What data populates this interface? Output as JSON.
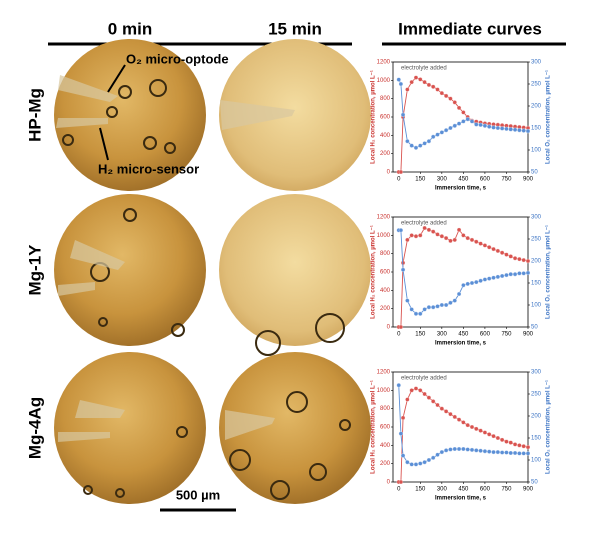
{
  "columns": [
    "0 min",
    "15 min",
    "Immediate curves"
  ],
  "rows": [
    "HP-Mg",
    "Mg-1Y",
    "Mg-4Ag"
  ],
  "photo_labels": [
    "O₂ micro-optode",
    "H₂ micro-sensor"
  ],
  "scale_bar": "500 µm",
  "chart_data": [
    {
      "type": "line",
      "annotation": "electrolyte added",
      "xlabel": "Immersion time, s",
      "ylabel": "Local H₂ concentration, µmol L⁻¹",
      "y2label": "Local O₂ concentration, µmol L⁻¹",
      "xlim": [
        -40,
        900
      ],
      "xticks": [
        0,
        150,
        300,
        450,
        600,
        750,
        900
      ],
      "ylim": [
        0,
        1200
      ],
      "yticks": [
        0,
        200,
        400,
        600,
        800,
        1000,
        1200
      ],
      "y2lim": [
        50,
        300
      ],
      "y2ticks": [
        50,
        100,
        150,
        200,
        250,
        300
      ],
      "x": [
        0,
        15,
        30,
        60,
        90,
        120,
        150,
        180,
        210,
        240,
        270,
        300,
        330,
        360,
        390,
        420,
        450,
        480,
        510,
        540,
        570,
        600,
        630,
        660,
        690,
        720,
        750,
        780,
        810,
        840,
        870,
        900
      ],
      "series": [
        {
          "name": "H₂",
          "color": "#d9534f",
          "values": [
            0,
            0,
            600,
            900,
            980,
            1030,
            1010,
            980,
            950,
            930,
            900,
            860,
            830,
            800,
            760,
            700,
            650,
            600,
            560,
            550,
            540,
            530,
            525,
            520,
            515,
            510,
            505,
            500,
            495,
            490,
            485,
            480
          ]
        },
        {
          "name": "O₂",
          "color": "#5b8fd6",
          "axis": "y2",
          "values": [
            260,
            250,
            180,
            120,
            110,
            105,
            110,
            115,
            120,
            130,
            135,
            140,
            145,
            150,
            155,
            160,
            165,
            170,
            165,
            158,
            157,
            155,
            153,
            151,
            150,
            149,
            148,
            147,
            146,
            145,
            144,
            143
          ]
        }
      ]
    },
    {
      "type": "line",
      "annotation": "electrolyte added",
      "xlabel": "Immersion time, s",
      "ylabel": "Local H₂ concentration, µmol L⁻¹",
      "y2label": "Local O₂ concentration, µmol L⁻¹",
      "xlim": [
        -40,
        900
      ],
      "xticks": [
        0,
        150,
        300,
        450,
        600,
        750,
        900
      ],
      "ylim": [
        0,
        1200
      ],
      "yticks": [
        0,
        200,
        400,
        600,
        800,
        1000,
        1200
      ],
      "y2lim": [
        50,
        300
      ],
      "y2ticks": [
        50,
        100,
        150,
        200,
        250,
        300
      ],
      "x": [
        0,
        15,
        30,
        60,
        90,
        120,
        150,
        180,
        210,
        240,
        270,
        300,
        330,
        360,
        390,
        420,
        450,
        480,
        510,
        540,
        570,
        600,
        630,
        660,
        690,
        720,
        750,
        780,
        810,
        840,
        870,
        900
      ],
      "series": [
        {
          "name": "H₂",
          "color": "#d9534f",
          "values": [
            0,
            0,
            700,
            950,
            1000,
            990,
            1000,
            1080,
            1060,
            1040,
            1010,
            990,
            970,
            940,
            950,
            1060,
            1000,
            970,
            950,
            930,
            910,
            890,
            870,
            850,
            830,
            810,
            790,
            770,
            750,
            740,
            730,
            720
          ]
        },
        {
          "name": "O₂",
          "color": "#5b8fd6",
          "axis": "y2",
          "values": [
            270,
            270,
            180,
            110,
            90,
            80,
            80,
            90,
            95,
            95,
            97,
            100,
            100,
            105,
            110,
            125,
            145,
            148,
            150,
            152,
            155,
            158,
            160,
            162,
            164,
            166,
            168,
            170,
            170,
            172,
            172,
            173
          ]
        }
      ]
    },
    {
      "type": "line",
      "annotation": "electrolyte added",
      "xlabel": "Immersion time, s",
      "ylabel": "Local H₂ concentration, µmol L⁻¹",
      "y2label": "Local O₂ concentration, µmol L⁻¹",
      "xlim": [
        -40,
        900
      ],
      "xticks": [
        0,
        150,
        300,
        450,
        600,
        750,
        900
      ],
      "ylim": [
        0,
        1200
      ],
      "yticks": [
        0,
        200,
        400,
        600,
        800,
        1000,
        1200
      ],
      "y2lim": [
        50,
        300
      ],
      "y2ticks": [
        50,
        100,
        150,
        200,
        250,
        300
      ],
      "x": [
        0,
        15,
        30,
        60,
        90,
        120,
        150,
        180,
        210,
        240,
        270,
        300,
        330,
        360,
        390,
        420,
        450,
        480,
        510,
        540,
        570,
        600,
        630,
        660,
        690,
        720,
        750,
        780,
        810,
        840,
        870,
        900
      ],
      "series": [
        {
          "name": "H₂",
          "color": "#d9534f",
          "values": [
            0,
            0,
            700,
            900,
            1000,
            1020,
            1000,
            960,
            920,
            880,
            840,
            800,
            770,
            740,
            710,
            680,
            650,
            620,
            600,
            580,
            560,
            540,
            520,
            500,
            480,
            460,
            440,
            430,
            410,
            400,
            390,
            380
          ]
        },
        {
          "name": "O₂",
          "color": "#5b8fd6",
          "axis": "y2",
          "values": [
            270,
            160,
            110,
            95,
            90,
            90,
            92,
            95,
            100,
            105,
            112,
            118,
            122,
            124,
            125,
            125,
            125,
            124,
            123,
            122,
            121,
            120,
            119,
            118,
            118,
            117,
            117,
            116,
            116,
            115,
            115,
            115
          ]
        }
      ]
    }
  ]
}
